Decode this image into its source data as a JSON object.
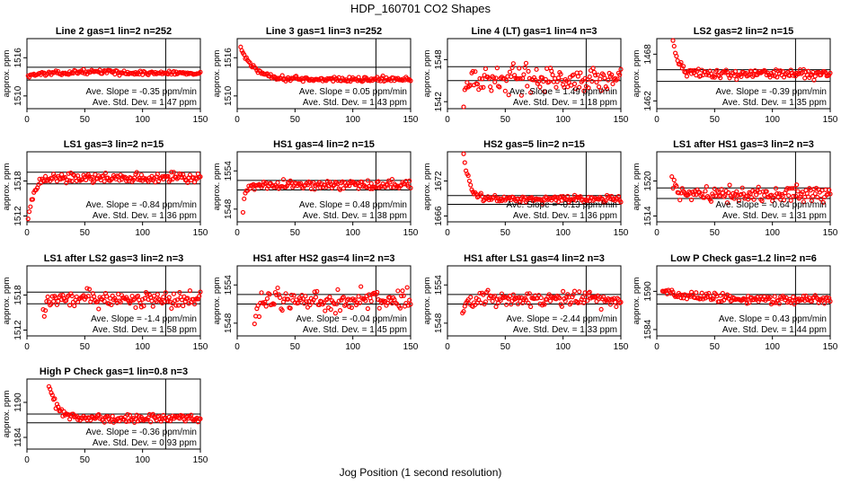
{
  "figure": {
    "title": "HDP_160701  CO2 Shapes",
    "xlabel": "Jog Position (1 second resolution)",
    "ylabel": "approx. ppm",
    "slope_prefix": "Ave. Slope = ",
    "slope_unit": "ppm/min",
    "std_prefix": "Ave. Std. Dev. = ",
    "std_unit": "ppm",
    "point_color": "#ff0000",
    "x_ticks": [
      0,
      50,
      100,
      150
    ],
    "vline_x": 120
  },
  "chart_data": [
    {
      "type": "scatter",
      "title": "Line 2 gas=1 lin=2 n=252",
      "xlim": [
        0,
        150
      ],
      "ylim": [
        1508,
        1519
      ],
      "yticks": [
        1510,
        1516
      ],
      "hlines": [
        1514.5,
        1512.5
      ],
      "slope": "-0.35",
      "std": "1.47",
      "profile": {
        "start": 1,
        "y_start": 1513.2,
        "y_level": 1513.6,
        "decay": 10,
        "noise": 0.15,
        "bump_at": 60,
        "bump_height": 0.2
      }
    },
    {
      "type": "scatter",
      "title": "Line 3 gas=1 lin=3 n=252",
      "xlim": [
        0,
        150
      ],
      "ylim": [
        1508,
        1519
      ],
      "yticks": [
        1510,
        1516
      ],
      "hlines": [
        1514.5,
        1512.5
      ],
      "slope": "0.05",
      "std": "1.43",
      "profile": {
        "start": 3,
        "y_start": 1517.5,
        "y_level": 1512.6,
        "decay": 12,
        "noise": 0.2,
        "bump_at": 0,
        "bump_height": 0
      }
    },
    {
      "type": "scatter",
      "title": "Line 4 (LT) gas=1 lin=4 n=3",
      "xlim": [
        0,
        150
      ],
      "ylim": [
        1541,
        1551
      ],
      "yticks": [
        1542,
        1548
      ],
      "hlines": [
        1547,
        1545
      ],
      "slope": "1.49",
      "std": "1.18",
      "profile": {
        "start": 14,
        "y_start": 1543,
        "y_level": 1545.2,
        "decay": 3,
        "noise": 0.9,
        "bump_at": 0,
        "bump_height": 0
      }
    },
    {
      "type": "scatter",
      "title": "LS2 gas=2 lin=2 n=15",
      "xlim": [
        0,
        150
      ],
      "ylim": [
        1461,
        1470
      ],
      "yticks": [
        1462,
        1468
      ],
      "hlines": [
        1466,
        1464.5
      ],
      "slope": "-0.39",
      "std": "1.35",
      "profile": {
        "start": 14,
        "y_start": 1470,
        "y_level": 1465.5,
        "decay": 4,
        "noise": 0.3,
        "bump_at": 0,
        "bump_height": 0
      }
    },
    {
      "type": "scatter",
      "title": "LS1 gas=3 lin=2 n=15",
      "xlim": [
        0,
        150
      ],
      "ylim": [
        1511,
        1523
      ],
      "yticks": [
        1512,
        1518
      ],
      "hlines": [
        1519.5,
        1517.5
      ],
      "slope": "-0.84",
      "std": "1.36",
      "profile": {
        "start": 1,
        "y_start": 1511.4,
        "y_level": 1518.6,
        "decay": 5,
        "noise": 0.4,
        "bump_at": 0,
        "bump_height": 0
      }
    },
    {
      "type": "scatter",
      "title": "HS1 gas=4 lin=2 n=15",
      "xlim": [
        0,
        150
      ],
      "ylim": [
        1546,
        1557
      ],
      "yticks": [
        1548,
        1554
      ],
      "hlines": [
        1552.5,
        1551
      ],
      "slope": "0.48",
      "std": "1.38",
      "profile": {
        "start": 5,
        "y_start": 1547,
        "y_level": 1551.8,
        "decay": 2,
        "noise": 0.35,
        "bump_at": 0,
        "bump_height": 0
      }
    },
    {
      "type": "scatter",
      "title": "HS2 gas=5 lin=2 n=15",
      "xlim": [
        0,
        150
      ],
      "ylim": [
        1665,
        1677
      ],
      "yticks": [
        1666,
        1672
      ],
      "hlines": [
        1669.5,
        1668
      ],
      "slope": "-0.13",
      "std": "1.36",
      "profile": {
        "start": 14,
        "y_start": 1676.5,
        "y_level": 1668.9,
        "decay": 5,
        "noise": 0.3,
        "bump_at": 0,
        "bump_height": 0
      }
    },
    {
      "type": "scatter",
      "title": "LS1 after HS1 gas=3 lin=2 n=3",
      "xlim": [
        0,
        150
      ],
      "ylim": [
        1513,
        1525
      ],
      "yticks": [
        1514,
        1520
      ],
      "hlines": [
        1518.8,
        1517
      ],
      "slope": "-0.64",
      "std": "1.31",
      "profile": {
        "start": 13,
        "y_start": 1521,
        "y_level": 1517.8,
        "decay": 3,
        "noise": 0.7,
        "bump_at": 0,
        "bump_height": 0
      }
    },
    {
      "type": "scatter",
      "title": "LS1 after LS2 gas=3 lin=2 n=3",
      "xlim": [
        0,
        150
      ],
      "ylim": [
        1511,
        1523
      ],
      "yticks": [
        1512,
        1518
      ],
      "hlines": [
        1518.5,
        1516.5
      ],
      "slope": "-1.4",
      "std": "1.58",
      "profile": {
        "start": 14,
        "y_start": 1515,
        "y_level": 1517.4,
        "decay": 3,
        "noise": 0.7,
        "bump_at": 0,
        "bump_height": 0
      }
    },
    {
      "type": "scatter",
      "title": "HS1 after HS2 gas=4 lin=2 n=3",
      "xlim": [
        0,
        150
      ],
      "ylim": [
        1546,
        1557
      ],
      "yticks": [
        1548,
        1554
      ],
      "hlines": [
        1552.5,
        1551
      ],
      "slope": "-0.04",
      "std": "1.45",
      "profile": {
        "start": 15,
        "y_start": 1548,
        "y_level": 1551.6,
        "decay": 3,
        "noise": 0.8,
        "bump_at": 0,
        "bump_height": 0
      }
    },
    {
      "type": "scatter",
      "title": "HS1 after LS1 gas=4 lin=2 n=3",
      "xlim": [
        0,
        150
      ],
      "ylim": [
        1546,
        1557
      ],
      "yticks": [
        1548,
        1554
      ],
      "hlines": [
        1552.5,
        1551
      ],
      "slope": "-2.44",
      "std": "1.33",
      "profile": {
        "start": 13,
        "y_start": 1549,
        "y_level": 1551.8,
        "decay": 3,
        "noise": 0.6,
        "bump_at": 0,
        "bump_height": 0
      }
    },
    {
      "type": "scatter",
      "title": "Low P Check gas=1.2 lin=2 n=6",
      "xlim": [
        0,
        150
      ],
      "ylim": [
        1583,
        1594
      ],
      "yticks": [
        1584,
        1590
      ],
      "hlines": [
        1589.5,
        1588
      ],
      "slope": "0.43",
      "std": "1.44",
      "profile": {
        "start": 5,
        "y_start": 1590,
        "y_level": 1588.7,
        "decay": 30,
        "noise": 0.35,
        "bump_at": 0,
        "bump_height": 0
      }
    },
    {
      "type": "scatter",
      "title": "High P Check gas=1 lin=0.8 n=3",
      "xlim": [
        0,
        150
      ],
      "ylim": [
        1182,
        1194
      ],
      "yticks": [
        1184,
        1190
      ],
      "hlines": [
        1188,
        1186.5
      ],
      "slope": "-0.36",
      "std": "0.93",
      "profile": {
        "start": 19,
        "y_start": 1193,
        "y_level": 1187.3,
        "decay": 7,
        "noise": 0.35,
        "bump_at": 0,
        "bump_height": 0
      }
    }
  ]
}
